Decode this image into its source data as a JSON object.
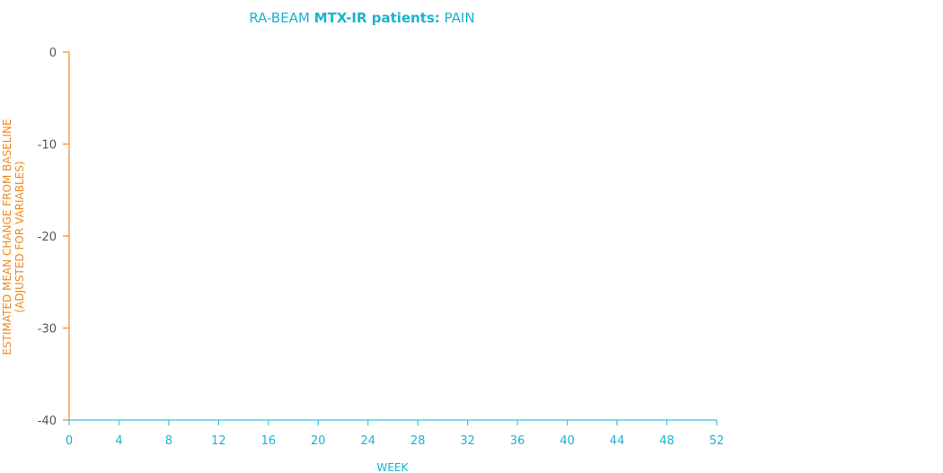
{
  "chart_data": {
    "type": "line",
    "title": {
      "part1": "RA-BEAM ",
      "part2": "MTX-IR patients:",
      "part3": " PAIN"
    },
    "xlabel": "WEEK",
    "ylabel": {
      "line1": "ESTIMATED MEAN CHANGE FROM BASELINE",
      "line2": "(ADJUSTED FOR VARIABLES)"
    },
    "x_ticks": [
      0,
      4,
      8,
      12,
      16,
      20,
      24,
      28,
      32,
      36,
      40,
      44,
      48,
      52
    ],
    "y_ticks": [
      0,
      -10,
      -20,
      -30,
      -40
    ],
    "xlim": [
      0,
      52
    ],
    "ylim": [
      -40,
      0
    ],
    "grid": false,
    "series": []
  },
  "colors": {
    "title": "#1ab3d1",
    "x_axis": "#3cc0da",
    "y_axis": "#f08a24",
    "x_tick_label": "#1ab3d1",
    "y_tick_label": "#555555",
    "xlabel": "#1ab3d1",
    "ylabel": "#f08a24"
  }
}
